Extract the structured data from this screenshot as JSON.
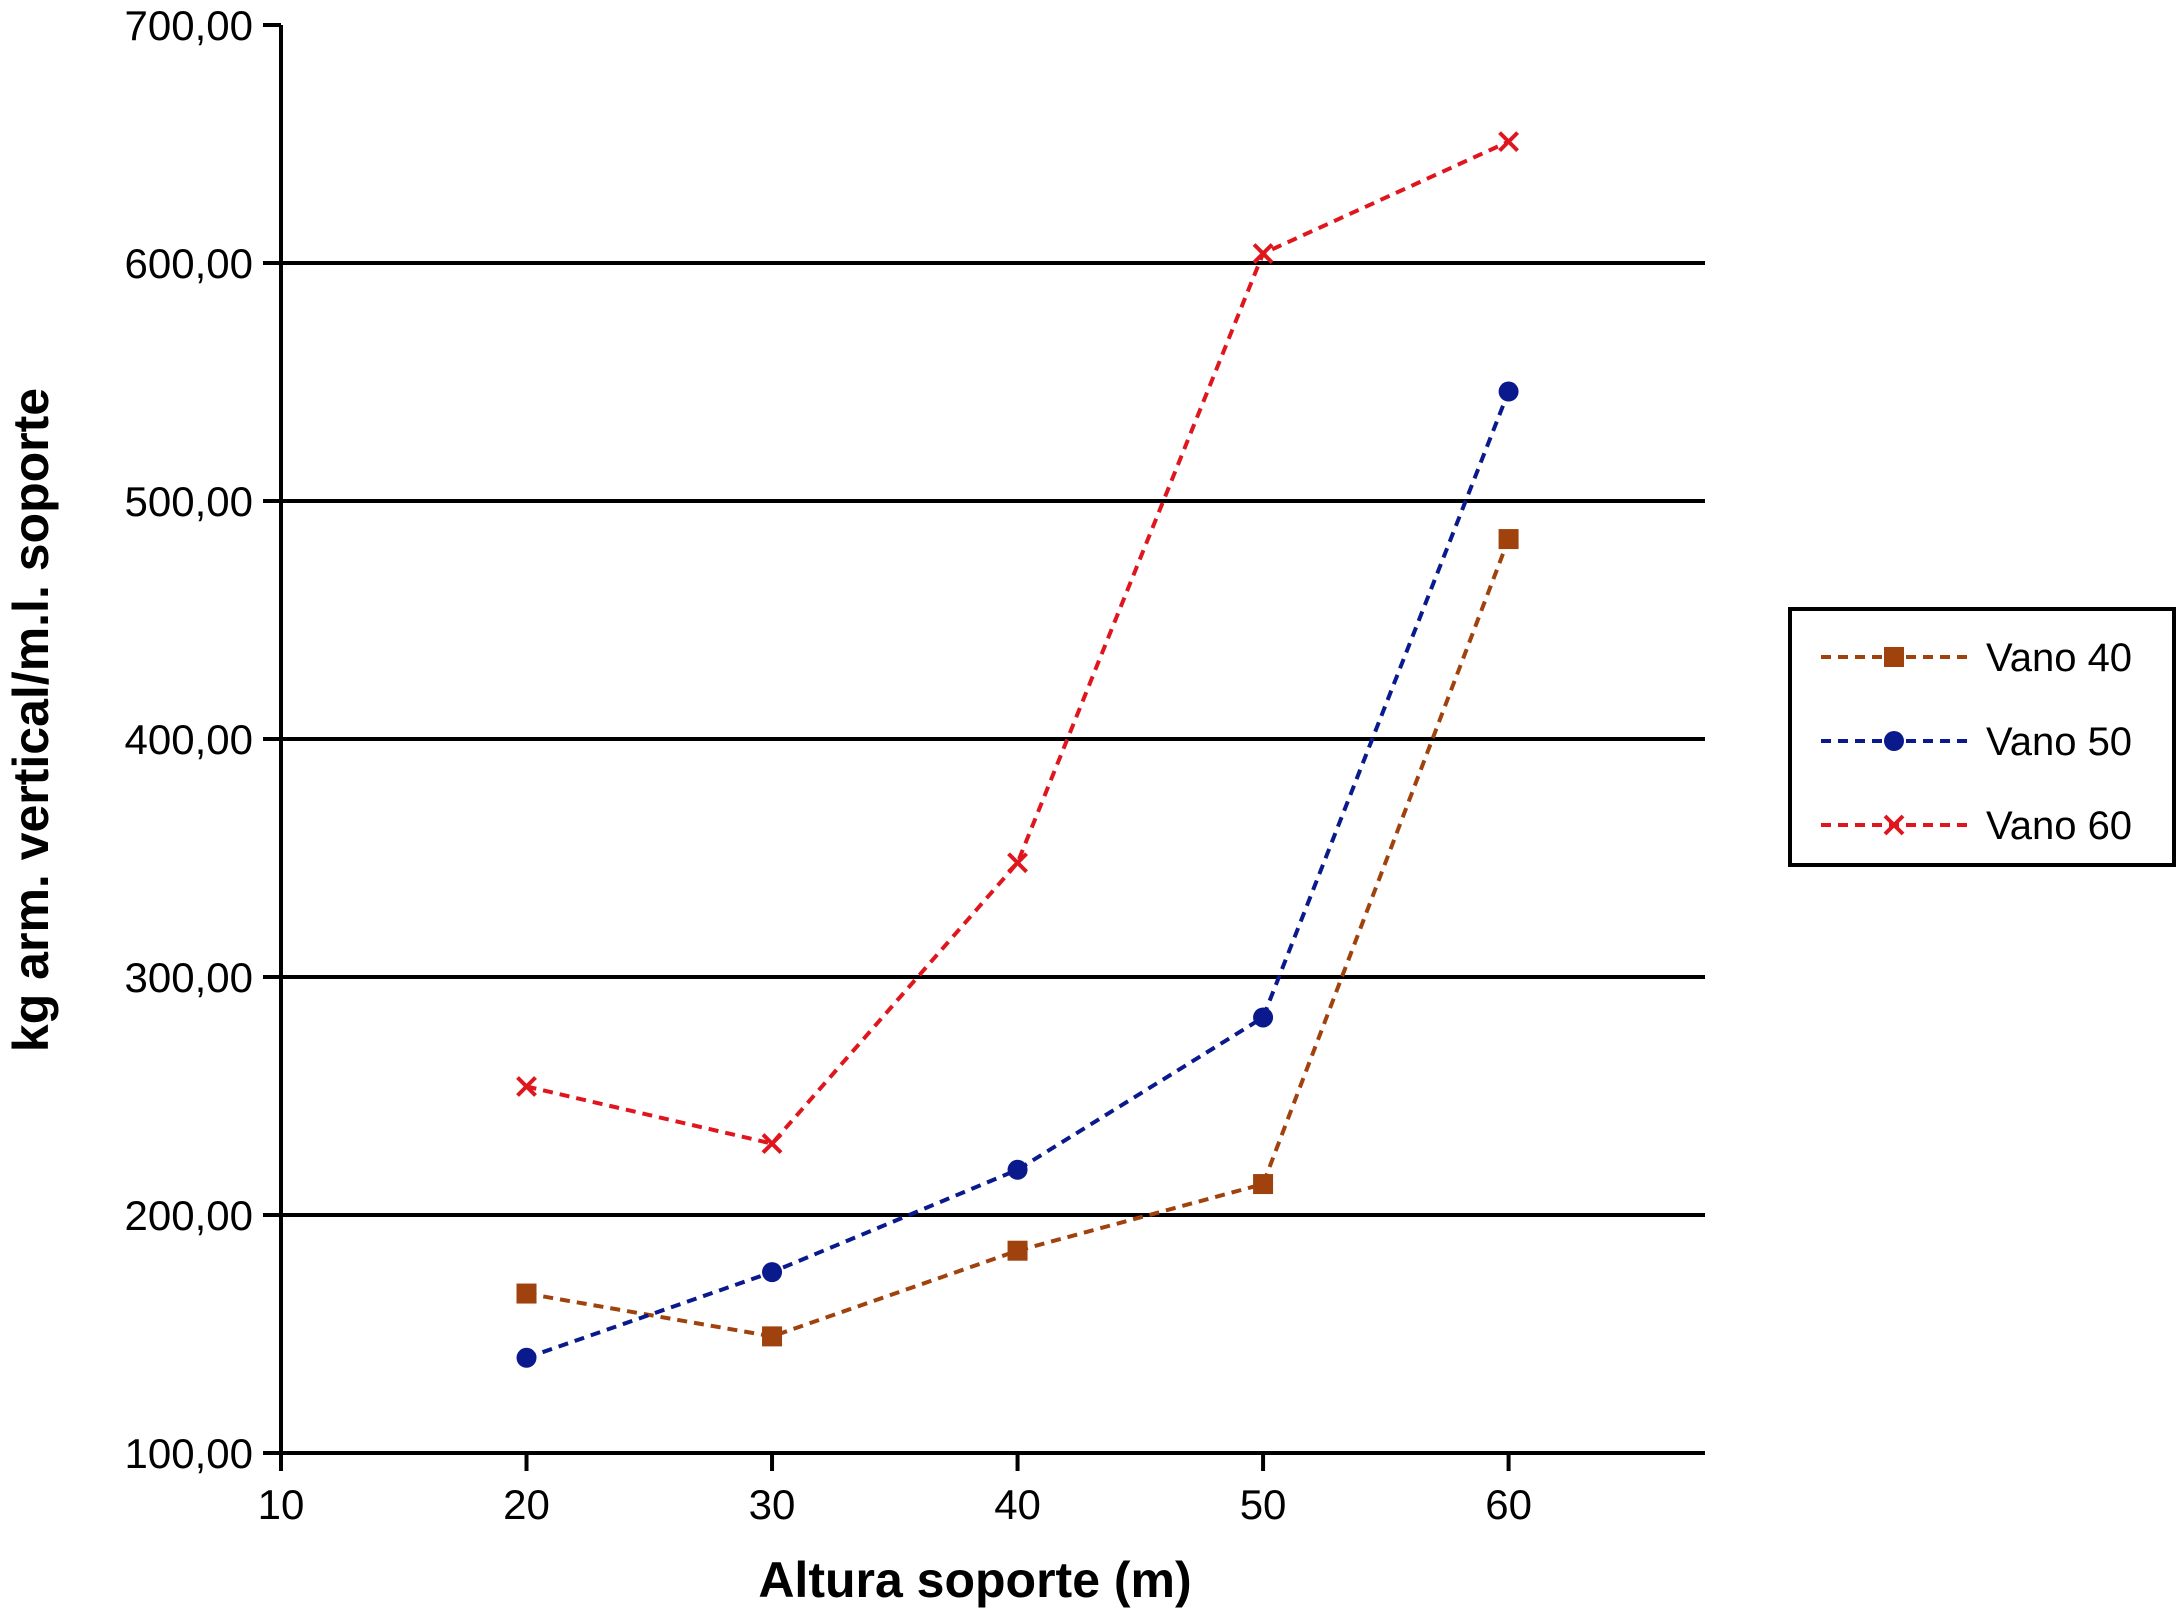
{
  "chart_data": {
    "type": "line",
    "title": "",
    "xlabel": "Altura soporte (m)",
    "ylabel": "kg arm. vertical/m.l. soporte",
    "xlim": [
      10,
      68
    ],
    "ylim": [
      100,
      700
    ],
    "x_ticks": [
      10,
      20,
      30,
      40,
      50,
      60
    ],
    "x_tick_labels": [
      "10",
      "20",
      "30",
      "40",
      "50",
      "60"
    ],
    "y_ticks": [
      100,
      200,
      300,
      400,
      500,
      600,
      700
    ],
    "y_tick_labels": [
      "100,00",
      "200,00",
      "300,00",
      "400,00",
      "500,00",
      "600,00",
      "700,00"
    ],
    "grid": "horizontal",
    "legend_position": "right",
    "x": [
      20,
      30,
      40,
      50,
      60
    ],
    "series": [
      {
        "name": "Vano 40",
        "values": [
          167,
          149,
          185,
          213,
          484
        ],
        "color": "#a0420e",
        "marker": "square"
      },
      {
        "name": "Vano 50",
        "values": [
          140,
          176,
          219,
          283,
          546
        ],
        "color": "#0a1a8c",
        "marker": "circle"
      },
      {
        "name": "Vano 60",
        "values": [
          254,
          230,
          348,
          604,
          651
        ],
        "color": "#e0161e",
        "marker": "x"
      }
    ]
  }
}
